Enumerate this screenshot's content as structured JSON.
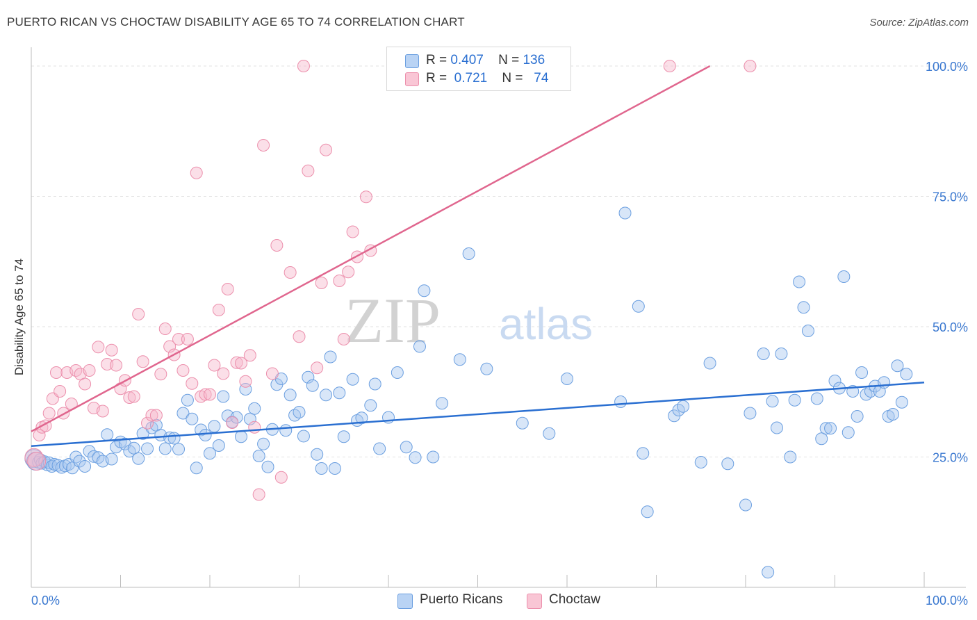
{
  "header": {
    "title": "PUERTO RICAN VS CHOCTAW DISABILITY AGE 65 TO 74 CORRELATION CHART",
    "source": "Source: ZipAtlas.com"
  },
  "legend": {
    "rows": [
      {
        "r_label": "R =",
        "r_value": "0.407",
        "n_label": "N =",
        "n_value": "136"
      },
      {
        "r_label": "R =",
        "r_value": "0.721",
        "n_label": "N =",
        "n_value": "74"
      }
    ]
  },
  "bottom_legend": [
    "Puerto Ricans",
    "Choctaw"
  ],
  "watermark": {
    "zip": "ZIP",
    "atlas": "atlas"
  },
  "colors": {
    "blue_fill": "#a9c8f0",
    "blue_stroke": "#6b9fe0",
    "blue_line": "#2a6fd1",
    "pink_fill": "#f7b9cb",
    "pink_stroke": "#ec8fac",
    "pink_line": "#e0668e",
    "tick_text": "#3a78d0",
    "grid": "#e2e2e2"
  },
  "chart_data": {
    "type": "scatter",
    "title": "PUERTO RICAN VS CHOCTAW DISABILITY AGE 65 TO 74 CORRELATION CHART",
    "xlabel": "",
    "ylabel": "Disability Age 65 to 74",
    "xlim": [
      0,
      100
    ],
    "ylim": [
      0,
      102
    ],
    "x_tick_labels": [
      "0.0%",
      "100.0%"
    ],
    "y_ticks": [
      25,
      50,
      75,
      100
    ],
    "y_tick_labels": [
      "25.0%",
      "50.0%",
      "75.0%",
      "100.0%"
    ],
    "grid": "horizontal dashed",
    "legend_position": "top-center",
    "series": [
      {
        "name": "Puerto Ricans",
        "r": 0.407,
        "n": 136,
        "trend": [
          [
            0,
            27.1
          ],
          [
            100,
            39.3
          ]
        ],
        "points": [
          [
            0.3,
            24.7
          ],
          [
            0.5,
            24.2
          ],
          [
            0.8,
            24.0
          ],
          [
            1.0,
            24.5
          ],
          [
            1.2,
            23.8
          ],
          [
            1.5,
            24.1
          ],
          [
            1.8,
            23.5
          ],
          [
            2.0,
            23.9
          ],
          [
            2.3,
            23.2
          ],
          [
            2.6,
            23.6
          ],
          [
            3.0,
            23.4
          ],
          [
            3.4,
            23.0
          ],
          [
            3.8,
            23.3
          ],
          [
            4.2,
            23.6
          ],
          [
            4.6,
            22.9
          ],
          [
            5.0,
            25.0
          ],
          [
            5.4,
            24.2
          ],
          [
            6.0,
            23.2
          ],
          [
            6.5,
            26.1
          ],
          [
            7.0,
            25.1
          ],
          [
            7.5,
            24.9
          ],
          [
            8.0,
            24.2
          ],
          [
            8.5,
            29.3
          ],
          [
            9.0,
            24.6
          ],
          [
            9.5,
            26.9
          ],
          [
            10.0,
            27.9
          ],
          [
            10.5,
            27.5
          ],
          [
            11.0,
            26.1
          ],
          [
            11.5,
            26.7
          ],
          [
            12.0,
            24.7
          ],
          [
            12.5,
            29.5
          ],
          [
            13.0,
            26.6
          ],
          [
            13.5,
            30.6
          ],
          [
            14.0,
            31.1
          ],
          [
            14.5,
            29.2
          ],
          [
            15.0,
            26.6
          ],
          [
            15.5,
            28.7
          ],
          [
            16.0,
            28.6
          ],
          [
            16.5,
            26.5
          ],
          [
            17.0,
            33.4
          ],
          [
            17.5,
            35.9
          ],
          [
            18.0,
            32.3
          ],
          [
            18.5,
            22.9
          ],
          [
            19.0,
            30.2
          ],
          [
            19.5,
            29.2
          ],
          [
            20.0,
            25.7
          ],
          [
            20.5,
            30.9
          ],
          [
            21.0,
            27.2
          ],
          [
            21.5,
            36.6
          ],
          [
            22.0,
            32.9
          ],
          [
            22.5,
            31.7
          ],
          [
            23.0,
            32.6
          ],
          [
            23.5,
            28.9
          ],
          [
            24.0,
            38.0
          ],
          [
            24.5,
            32.3
          ],
          [
            25.0,
            34.3
          ],
          [
            25.5,
            25.2
          ],
          [
            26.0,
            27.5
          ],
          [
            26.5,
            23.1
          ],
          [
            27.0,
            30.3
          ],
          [
            27.5,
            38.9
          ],
          [
            28.0,
            40.0
          ],
          [
            28.5,
            30.1
          ],
          [
            29.0,
            36.9
          ],
          [
            29.5,
            33.0
          ],
          [
            30.0,
            33.6
          ],
          [
            30.5,
            29.0
          ],
          [
            31.0,
            40.3
          ],
          [
            31.5,
            38.7
          ],
          [
            32.0,
            25.5
          ],
          [
            32.5,
            22.8
          ],
          [
            33.0,
            36.9
          ],
          [
            33.5,
            44.2
          ],
          [
            34.0,
            22.8
          ],
          [
            34.5,
            37.3
          ],
          [
            35.0,
            28.9
          ],
          [
            36.0,
            39.9
          ],
          [
            36.5,
            32.0
          ],
          [
            37.0,
            32.5
          ],
          [
            38.0,
            34.9
          ],
          [
            38.5,
            39.0
          ],
          [
            39.0,
            26.6
          ],
          [
            40.0,
            32.6
          ],
          [
            41.0,
            41.2
          ],
          [
            42.0,
            26.9
          ],
          [
            43.0,
            24.9
          ],
          [
            43.5,
            46.2
          ],
          [
            44.0,
            56.9
          ],
          [
            45.0,
            25.0
          ],
          [
            46.0,
            35.3
          ],
          [
            48.0,
            43.7
          ],
          [
            49.0,
            64.0
          ],
          [
            51.0,
            41.9
          ],
          [
            55.0,
            31.5
          ],
          [
            58.0,
            29.5
          ],
          [
            60.0,
            40.0
          ],
          [
            66.0,
            35.6
          ],
          [
            66.5,
            71.8
          ],
          [
            68.0,
            53.9
          ],
          [
            68.5,
            25.7
          ],
          [
            69.0,
            14.5
          ],
          [
            72.0,
            32.9
          ],
          [
            72.5,
            34.0
          ],
          [
            73.0,
            34.7
          ],
          [
            75.0,
            24.0
          ],
          [
            76.0,
            43.0
          ],
          [
            78.0,
            23.7
          ],
          [
            80.0,
            15.8
          ],
          [
            80.5,
            33.4
          ],
          [
            82.0,
            44.8
          ],
          [
            82.5,
            2.9
          ],
          [
            83.0,
            35.7
          ],
          [
            83.5,
            30.6
          ],
          [
            84.0,
            44.8
          ],
          [
            85.0,
            25.0
          ],
          [
            85.5,
            35.9
          ],
          [
            86.0,
            58.6
          ],
          [
            86.5,
            53.7
          ],
          [
            87.0,
            49.2
          ],
          [
            88.0,
            36.2
          ],
          [
            88.5,
            28.5
          ],
          [
            89.0,
            30.5
          ],
          [
            89.5,
            30.5
          ],
          [
            90.0,
            39.6
          ],
          [
            90.5,
            38.2
          ],
          [
            91.0,
            59.6
          ],
          [
            91.5,
            29.7
          ],
          [
            92.0,
            37.6
          ],
          [
            92.5,
            32.8
          ],
          [
            93.0,
            41.2
          ],
          [
            93.5,
            37.0
          ],
          [
            94.0,
            37.6
          ],
          [
            94.5,
            38.6
          ],
          [
            95.0,
            37.6
          ],
          [
            95.5,
            39.3
          ],
          [
            96.0,
            32.8
          ],
          [
            96.5,
            33.2
          ],
          [
            97.0,
            42.5
          ],
          [
            97.5,
            35.5
          ],
          [
            98.0,
            40.9
          ]
        ]
      },
      {
        "name": "Choctaw",
        "r": 0.721,
        "n": 74,
        "trend": [
          [
            0,
            29.9
          ],
          [
            76,
            100
          ]
        ],
        "points": [
          [
            0.3,
            24.9
          ],
          [
            0.6,
            24.2
          ],
          [
            0.9,
            29.2
          ],
          [
            1.2,
            30.7
          ],
          [
            1.6,
            31.0
          ],
          [
            2.0,
            33.4
          ],
          [
            2.4,
            36.2
          ],
          [
            2.8,
            41.2
          ],
          [
            3.2,
            37.6
          ],
          [
            3.6,
            33.4
          ],
          [
            4.0,
            41.2
          ],
          [
            4.5,
            35.2
          ],
          [
            5.0,
            41.6
          ],
          [
            5.5,
            40.9
          ],
          [
            6.0,
            39.0
          ],
          [
            6.5,
            41.6
          ],
          [
            7.0,
            34.4
          ],
          [
            7.5,
            46.1
          ],
          [
            8.0,
            33.8
          ],
          [
            8.5,
            42.8
          ],
          [
            9.0,
            45.5
          ],
          [
            9.5,
            42.6
          ],
          [
            10.0,
            38.1
          ],
          [
            10.5,
            39.7
          ],
          [
            11.0,
            36.4
          ],
          [
            11.5,
            36.6
          ],
          [
            12.0,
            52.4
          ],
          [
            12.5,
            43.3
          ],
          [
            13.0,
            31.5
          ],
          [
            13.5,
            33.0
          ],
          [
            14.0,
            33.0
          ],
          [
            14.5,
            40.9
          ],
          [
            15.0,
            49.6
          ],
          [
            15.5,
            46.2
          ],
          [
            16.0,
            44.6
          ],
          [
            16.5,
            47.6
          ],
          [
            17.0,
            41.6
          ],
          [
            17.5,
            47.6
          ],
          [
            18.0,
            39.1
          ],
          [
            18.5,
            79.5
          ],
          [
            19.0,
            36.6
          ],
          [
            19.5,
            37.0
          ],
          [
            20.0,
            37.0
          ],
          [
            20.5,
            42.6
          ],
          [
            21.0,
            53.2
          ],
          [
            21.5,
            41.0
          ],
          [
            22.0,
            57.2
          ],
          [
            22.5,
            31.6
          ],
          [
            23.0,
            43.1
          ],
          [
            23.5,
            43.0
          ],
          [
            24.0,
            39.5
          ],
          [
            24.5,
            44.5
          ],
          [
            25.0,
            30.7
          ],
          [
            25.5,
            17.8
          ],
          [
            26.0,
            84.8
          ],
          [
            27.0,
            41.0
          ],
          [
            27.5,
            65.6
          ],
          [
            28.0,
            21.1
          ],
          [
            29.0,
            60.4
          ],
          [
            30.0,
            48.1
          ],
          [
            30.5,
            100.0
          ],
          [
            31.0,
            79.9
          ],
          [
            32.0,
            42.1
          ],
          [
            32.5,
            58.4
          ],
          [
            33.0,
            83.9
          ],
          [
            34.5,
            58.8
          ],
          [
            35.0,
            47.6
          ],
          [
            35.5,
            60.5
          ],
          [
            36.0,
            68.2
          ],
          [
            36.5,
            63.4
          ],
          [
            37.5,
            74.9
          ],
          [
            38.0,
            64.6
          ],
          [
            71.5,
            100.0
          ],
          [
            80.5,
            100.0
          ]
        ]
      }
    ]
  }
}
